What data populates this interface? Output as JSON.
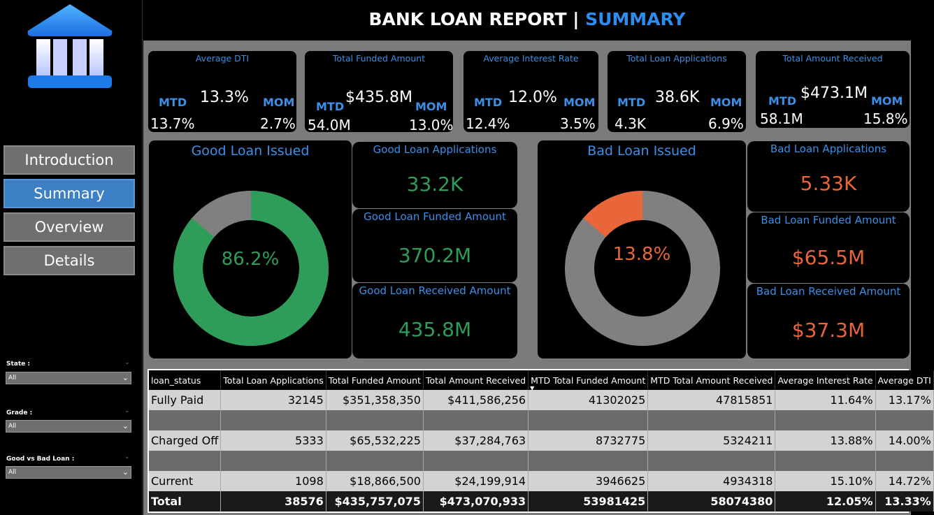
{
  "header": {
    "title": "BANK LOAN REPORT |",
    "accent": "SUMMARY"
  },
  "nav": [
    {
      "label": "Introduction",
      "active": false
    },
    {
      "label": "Summary",
      "active": true
    },
    {
      "label": "Overview",
      "active": false
    },
    {
      "label": "Details",
      "active": false
    }
  ],
  "filters": [
    {
      "label": "State :",
      "value": "All"
    },
    {
      "label": "Grade :",
      "value": "All"
    },
    {
      "label": "Good vs Bad Loan :",
      "value": "All"
    }
  ],
  "kpis": [
    {
      "title": "Average DTI",
      "mtd_label": "MTD",
      "mom_label": "MOM",
      "value": "13.3%",
      "mtd": "13.7%",
      "mom": "2.7%"
    },
    {
      "title": "Total Funded Amount",
      "mtd_label": "MTD",
      "mom_label": "MOM",
      "value": "$435.8M",
      "mtd": "54.0M",
      "mom": "13.0%"
    },
    {
      "title": "Average Interest Rate",
      "mtd_label": "MTD",
      "mom_label": "MOM",
      "value": "12.0%",
      "mtd": "12.4%",
      "mom": "3.5%"
    },
    {
      "title": "Total Loan Applications",
      "mtd_label": "MTD",
      "mom_label": "MOM",
      "value": "38.6K",
      "mtd": "4.3K",
      "mom": "6.9%"
    },
    {
      "title": "Total Amount Received",
      "mtd_label": "MTD",
      "mom_label": "MOM",
      "value": "$473.1M",
      "mtd": "58.1M",
      "mom": "15.8%"
    }
  ],
  "good": {
    "title": "Good Loan Issued",
    "percent_label": "86.2%",
    "percent": 86.2,
    "color": "#2e9d5a",
    "rest_color": "#808080",
    "cards": [
      {
        "title": "Good Loan Applications",
        "value": "33.2K"
      },
      {
        "title": "Good Loan Funded Amount",
        "value": "370.2M"
      },
      {
        "title": "Good Loan Received Amount",
        "value": "435.8M"
      }
    ]
  },
  "bad": {
    "title": "Bad Loan Issued",
    "percent_label": "13.8%",
    "percent": 13.8,
    "color": "#e8663a",
    "rest_color": "#808080",
    "cards": [
      {
        "title": "Bad Loan Applications",
        "value": "5.33K"
      },
      {
        "title": "Bad Loan Funded Amount",
        "value": "$65.5M"
      },
      {
        "title": "Bad Loan Received Amount",
        "value": "$37.3M"
      }
    ]
  },
  "table": {
    "columns": [
      "loan_status",
      "Total Loan Applications",
      "Total Funded Amount",
      "Total Amount Received",
      "MTD Total Funded Amount",
      "MTD Total Amount Received",
      "Average Interest Rate",
      "Average DTI"
    ],
    "rows": [
      [
        "Fully Paid",
        "32145",
        "$351,358,350",
        "$411,586,256",
        "41302025",
        "47815851",
        "11.64%",
        "13.17%"
      ],
      [
        "Charged Off",
        "5333",
        "$65,532,225",
        "$37,284,763",
        "8732775",
        "5324211",
        "13.88%",
        "14.00%"
      ],
      [
        "Current",
        "1098",
        "$18,866,500",
        "$24,199,914",
        "3946625",
        "4934318",
        "15.10%",
        "14.72%"
      ]
    ],
    "total": [
      "Total",
      "38576",
      "$435,757,075",
      "$473,070,933",
      "53981425",
      "58074380",
      "12.05%",
      "13.33%"
    ]
  }
}
